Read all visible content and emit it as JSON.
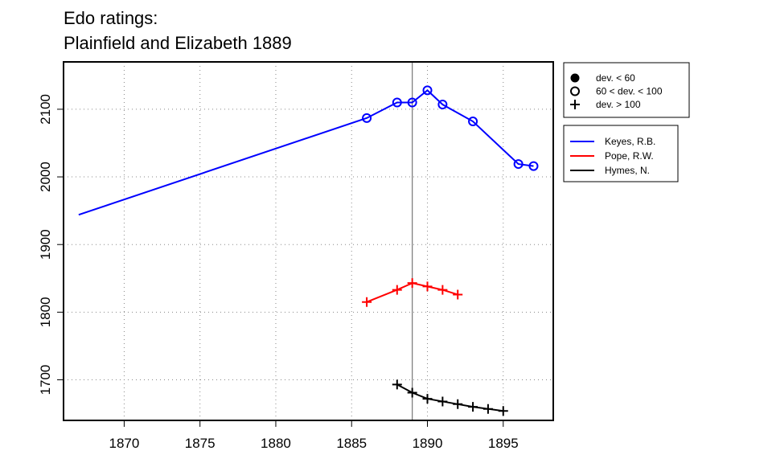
{
  "chart_data": {
    "type": "line",
    "title_lines": [
      "Edo ratings:",
      "Plainfield and Elizabeth 1889"
    ],
    "xlabel": "",
    "ylabel": "",
    "xlim": [
      1866.0,
      1898.3
    ],
    "ylim": [
      1640,
      2170
    ],
    "x_ticks": [
      1870,
      1875,
      1880,
      1885,
      1890,
      1895
    ],
    "y_ticks": [
      1700,
      1800,
      1900,
      2000,
      2100
    ],
    "grid": true,
    "reference_line_x": 1889,
    "marker_legend": {
      "position": "top-right",
      "items": [
        {
          "symbol": "filled-circle",
          "label": "dev. < 60"
        },
        {
          "symbol": "open-circle",
          "label": "60 < dev. < 100"
        },
        {
          "symbol": "plus",
          "label": "dev. > 100"
        }
      ]
    },
    "series": [
      {
        "name": "Keyes, R.B.",
        "color": "#0000ff",
        "points": [
          {
            "x": 1867,
            "y": 1944,
            "marker": "none"
          },
          {
            "x": 1886,
            "y": 2087,
            "marker": "open-circle"
          },
          {
            "x": 1888,
            "y": 2110,
            "marker": "open-circle"
          },
          {
            "x": 1889,
            "y": 2110,
            "marker": "open-circle"
          },
          {
            "x": 1890,
            "y": 2128,
            "marker": "open-circle"
          },
          {
            "x": 1891,
            "y": 2107,
            "marker": "open-circle"
          },
          {
            "x": 1893,
            "y": 2082,
            "marker": "open-circle"
          },
          {
            "x": 1896,
            "y": 2019,
            "marker": "open-circle"
          },
          {
            "x": 1897,
            "y": 2016,
            "marker": "open-circle"
          }
        ]
      },
      {
        "name": "Pope, R.W.",
        "color": "#ff0000",
        "points": [
          {
            "x": 1886,
            "y": 1815,
            "marker": "plus"
          },
          {
            "x": 1888,
            "y": 1833,
            "marker": "plus"
          },
          {
            "x": 1889,
            "y": 1843,
            "marker": "plus"
          },
          {
            "x": 1890,
            "y": 1838,
            "marker": "plus"
          },
          {
            "x": 1891,
            "y": 1833,
            "marker": "plus"
          },
          {
            "x": 1892,
            "y": 1826,
            "marker": "plus"
          }
        ]
      },
      {
        "name": "Hymes, N.",
        "color": "#000000",
        "points": [
          {
            "x": 1888,
            "y": 1693,
            "marker": "plus"
          },
          {
            "x": 1889,
            "y": 1681,
            "marker": "plus"
          },
          {
            "x": 1890,
            "y": 1672,
            "marker": "plus"
          },
          {
            "x": 1891,
            "y": 1668,
            "marker": "plus"
          },
          {
            "x": 1892,
            "y": 1664,
            "marker": "plus"
          },
          {
            "x": 1893,
            "y": 1660,
            "marker": "plus"
          },
          {
            "x": 1894,
            "y": 1657,
            "marker": "plus"
          },
          {
            "x": 1895,
            "y": 1654,
            "marker": "plus"
          }
        ]
      }
    ]
  }
}
